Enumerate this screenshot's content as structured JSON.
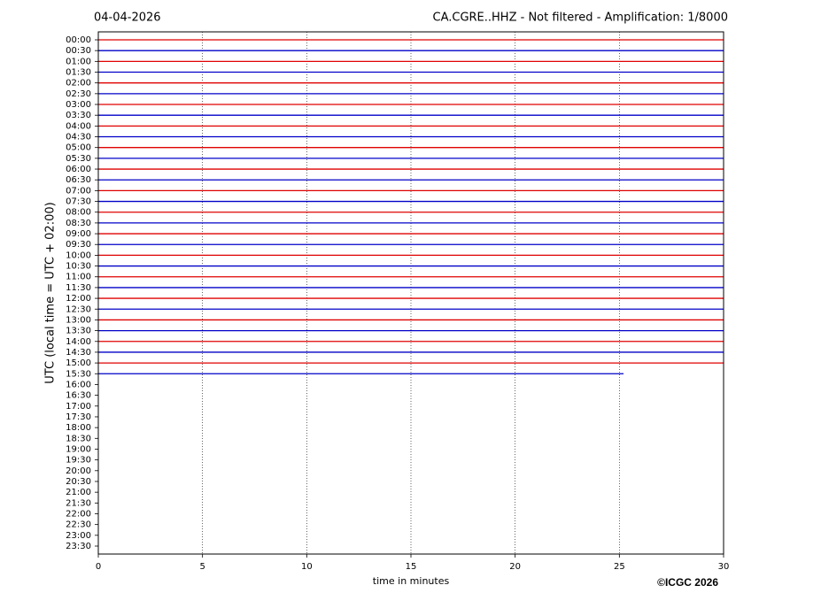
{
  "chart_data": {
    "type": "seismogram",
    "title_left": "04-04-2026",
    "title_right": "CA.CGRE..HHZ - Not filtered - Amplification: 1/8000",
    "ylabel": "UTC (local time = UTC + 02:00)",
    "xlabel": "time in minutes",
    "copyright": "©ICGC 2026",
    "categories": [
      "00:00",
      "00:30",
      "01:00",
      "01:30",
      "02:00",
      "02:30",
      "03:00",
      "03:30",
      "04:00",
      "04:30",
      "05:00",
      "05:30",
      "06:00",
      "06:30",
      "07:00",
      "07:30",
      "08:00",
      "08:30",
      "09:00",
      "09:30",
      "10:00",
      "10:30",
      "11:00",
      "11:30",
      "12:00",
      "12:30",
      "13:00",
      "13:30",
      "14:00",
      "14:30",
      "15:00",
      "15:30",
      "16:00",
      "16:30",
      "17:00",
      "17:30",
      "18:00",
      "18:30",
      "19:00",
      "19:30",
      "20:00",
      "20:30",
      "21:00",
      "21:30",
      "22:00",
      "22:30",
      "23:00",
      "23:30"
    ],
    "trace_ends": [
      30,
      30,
      30,
      30,
      30,
      30,
      30,
      30,
      30,
      30,
      30,
      30,
      30,
      30,
      30,
      30,
      30,
      30,
      30,
      30,
      30,
      30,
      30,
      30,
      30,
      30,
      30,
      30,
      30,
      30,
      30,
      25.2
    ],
    "trace_colors": [
      "#e00000",
      "#0000c8"
    ],
    "xlim": [
      0,
      30
    ],
    "xticks": [
      0,
      5,
      10,
      15,
      20,
      25,
      30
    ],
    "grid": true
  }
}
